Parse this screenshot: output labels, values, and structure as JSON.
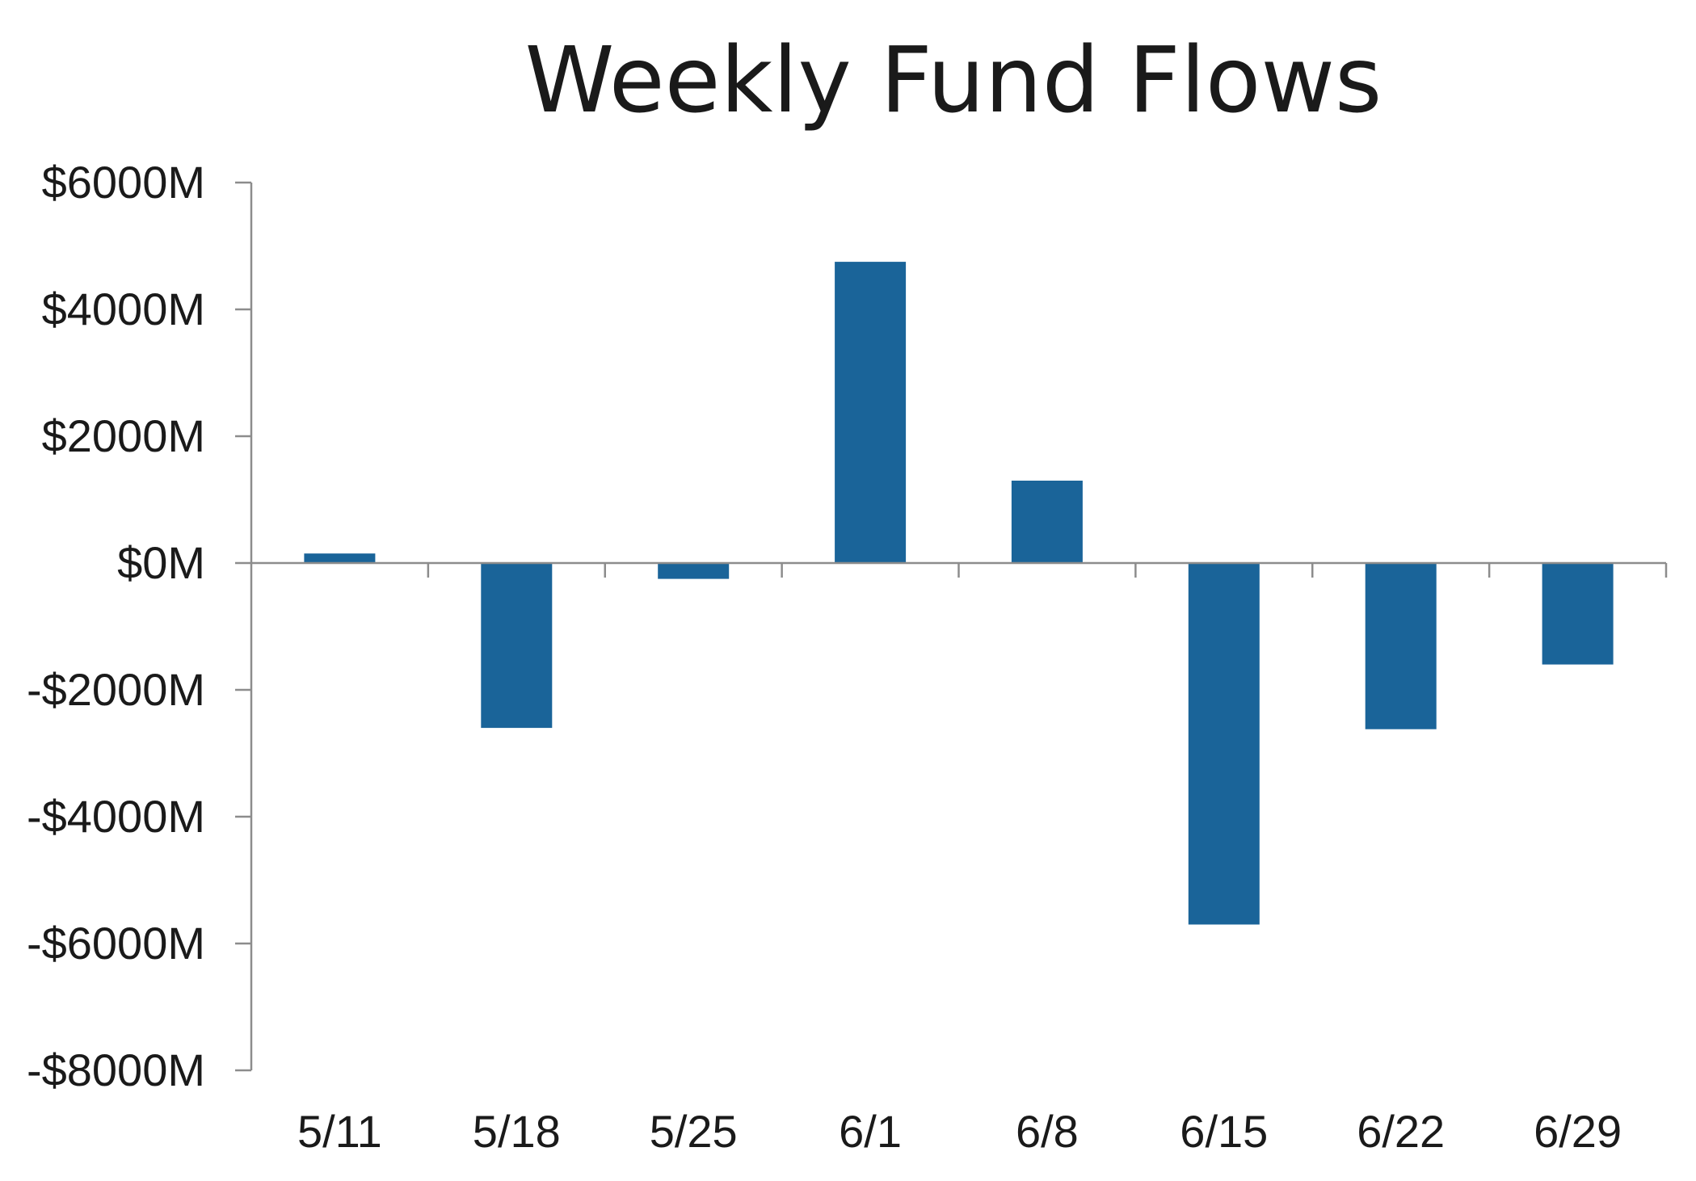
{
  "chart_data": {
    "type": "bar",
    "title": "Weekly Fund Flows",
    "xlabel": "",
    "ylabel": "",
    "categories": [
      "5/11",
      "5/18",
      "5/25",
      "6/1",
      "6/8",
      "6/15",
      "6/22",
      "6/29"
    ],
    "values": [
      150,
      -2600,
      -250,
      4750,
      1300,
      -5700,
      -2620,
      -1600
    ],
    "ylim": [
      -8000,
      6000
    ],
    "yticks": [
      6000,
      4000,
      2000,
      0,
      -2000,
      -4000,
      -6000,
      -8000
    ],
    "ytick_labels": [
      "$6000M",
      "$4000M",
      "$2000M",
      "$0M",
      "-$2000M",
      "-$4000M",
      "-$6000M",
      "-$8000M"
    ],
    "units": "M",
    "grid": false,
    "legend": "none",
    "colors": {
      "bar": "#1a6499",
      "axis": "#8c8c8c",
      "text": "#1a1a1a"
    }
  }
}
